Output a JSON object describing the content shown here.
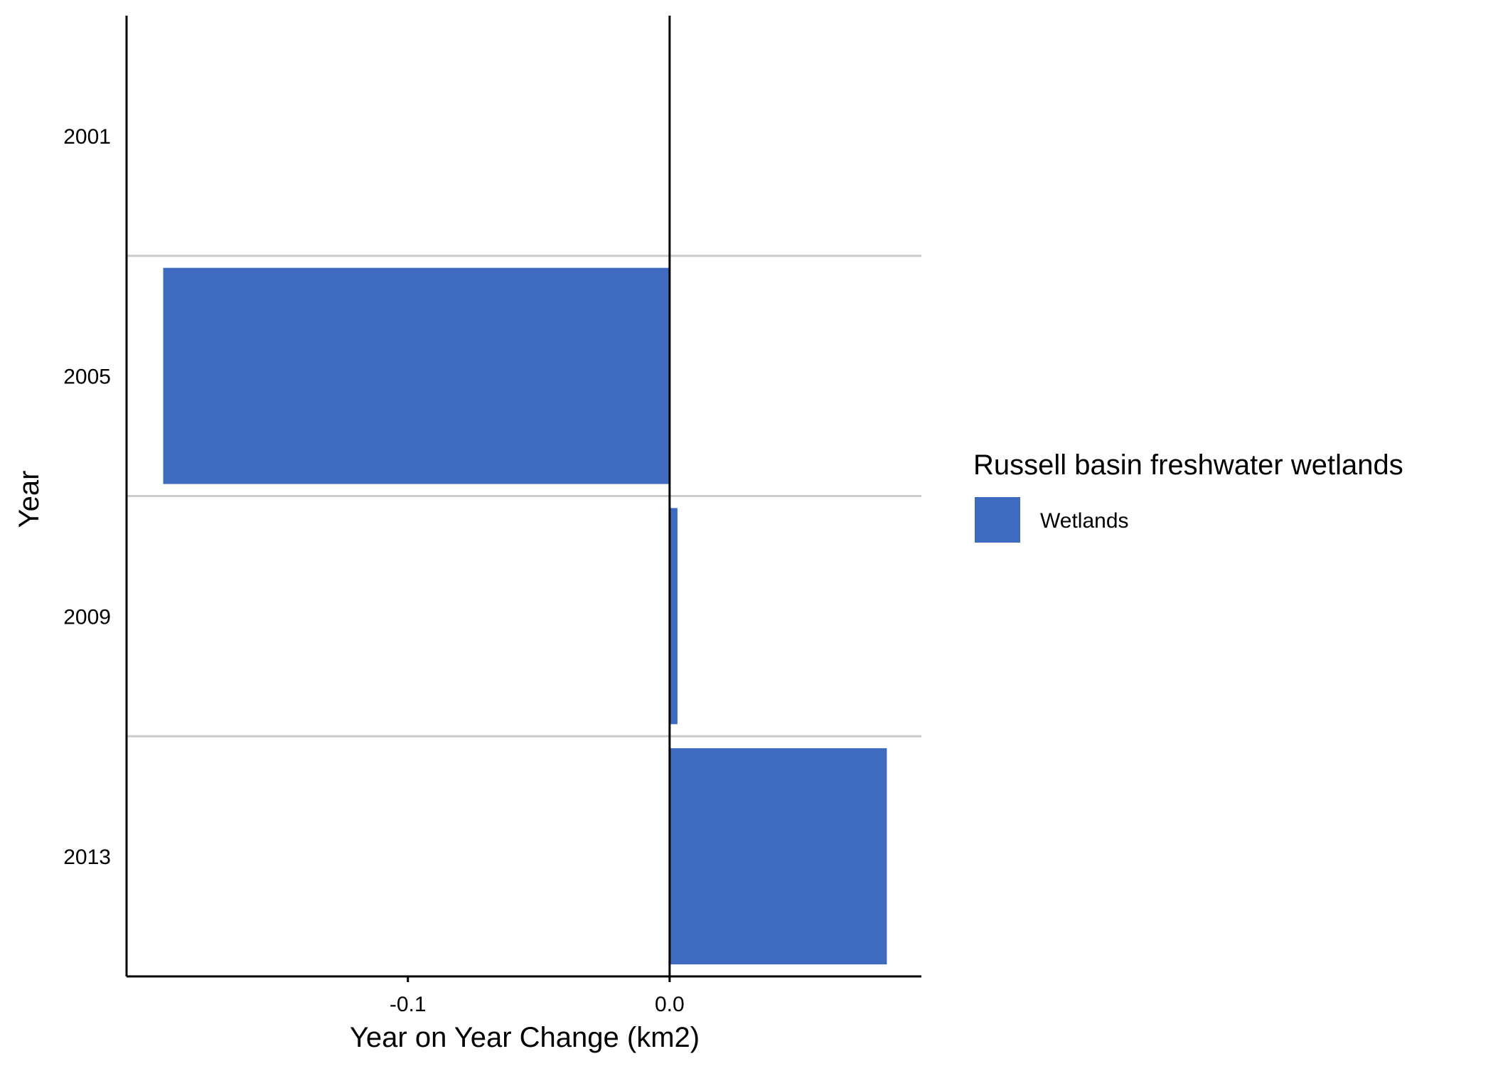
{
  "chart_data": {
    "type": "bar",
    "orientation": "horizontal",
    "categories": [
      "2001",
      "2005",
      "2009",
      "2013"
    ],
    "series": [
      {
        "name": "Wetlands",
        "values": [
          0.0,
          -0.1935,
          0.003,
          0.083
        ]
      }
    ],
    "title": "",
    "xlabel": "Year on Year Change (km2)",
    "ylabel": "Year",
    "xlim": [
      -0.2075,
      0.0962
    ],
    "x_ticks": [
      {
        "value": -0.1,
        "label": "-0.1"
      },
      {
        "value": 0.0,
        "label": "0.0"
      }
    ],
    "legend": {
      "title": "Russell basin freshwater wetlands",
      "position": "right",
      "entries": [
        {
          "label": "Wetlands",
          "color": "#3E6BBF"
        }
      ]
    },
    "grid": "horizontal lines between categories",
    "bar_color": "#3E6BBF",
    "grid_color": "#CCCCCC",
    "axis_color": "#000000"
  }
}
